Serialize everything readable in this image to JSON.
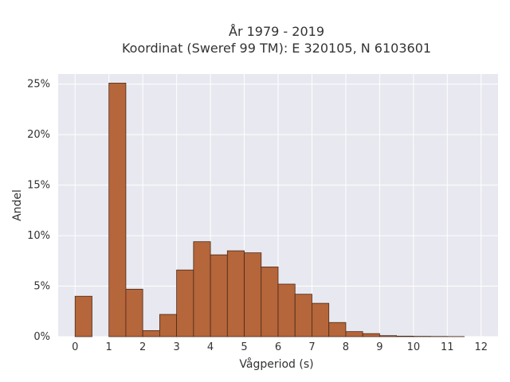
{
  "chart_data": {
    "type": "bar",
    "title_line1": "År 1979 - 2019",
    "title_line2": "Koordinat (Sweref 99 TM): E 320105, N 6103601",
    "xlabel": "Vågperiod (s)",
    "ylabel": "Andel",
    "bin_width": 0.5,
    "xlim": [
      -0.5,
      12.5
    ],
    "ylim": [
      0,
      0.26
    ],
    "x_ticks": [
      0,
      1,
      2,
      3,
      4,
      5,
      6,
      7,
      8,
      9,
      10,
      11,
      12
    ],
    "x_tick_labels": [
      "0",
      "1",
      "2",
      "3",
      "4",
      "5",
      "6",
      "7",
      "8",
      "9",
      "10",
      "11",
      "12"
    ],
    "y_ticks": [
      0,
      0.05,
      0.1,
      0.15,
      0.2,
      0.25
    ],
    "y_tick_labels": [
      "0%",
      "5%",
      "10%",
      "15%",
      "20%",
      "25%"
    ],
    "bin_starts": [
      0,
      0.5,
      1,
      1.5,
      2,
      2.5,
      3,
      3.5,
      4,
      4.5,
      5,
      5.5,
      6,
      6.5,
      7,
      7.5,
      8,
      8.5,
      9,
      9.5,
      10,
      10.5,
      11,
      11.5
    ],
    "values": [
      0.04,
      0.0,
      0.251,
      0.047,
      0.006,
      0.022,
      0.066,
      0.094,
      0.081,
      0.085,
      0.083,
      0.069,
      0.052,
      0.042,
      0.033,
      0.014,
      0.005,
      0.003,
      0.001,
      0.0005,
      0.0003,
      0.0002,
      0.0001,
      0.0
    ],
    "colors": {
      "bar_fill": "#b5663a",
      "plot_bg": "#e8e8f0"
    },
    "grid": true
  }
}
